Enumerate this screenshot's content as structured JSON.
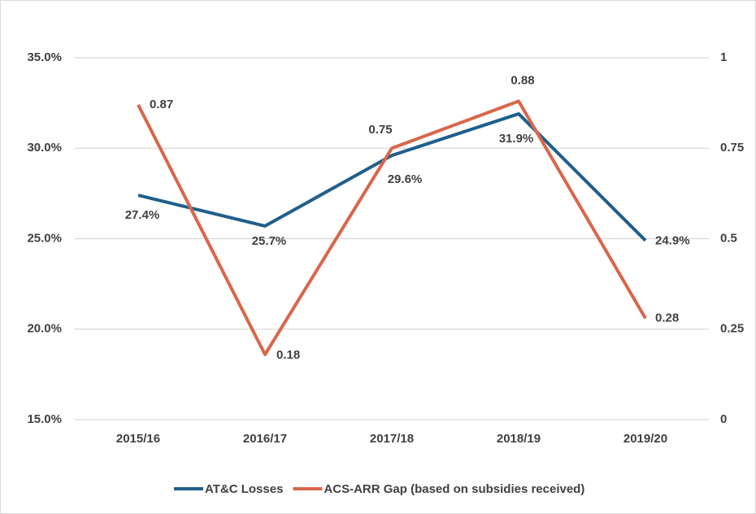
{
  "chart_data": {
    "type": "line",
    "categories": [
      "2015/16",
      "2016/17",
      "2017/18",
      "2018/19",
      "2019/20"
    ],
    "series": [
      {
        "name": "AT&C Losses",
        "color": "#1f5f8b",
        "values": [
          27.4,
          25.7,
          29.6,
          31.9,
          24.9
        ],
        "value_labels": [
          "27.4%",
          "25.7%",
          "29.6%",
          "31.9%",
          "24.9%"
        ]
      },
      {
        "name": "ACS-ARR Gap (based on subsidies received)",
        "color": "#d9664b",
        "axis": "y2",
        "values": [
          0.87,
          0.18,
          0.75,
          0.88,
          0.28
        ]
      }
    ],
    "ylim": [
      15,
      35
    ],
    "yticks": [
      {
        "value": 15,
        "label": "15.0%"
      },
      {
        "value": 20,
        "label": "20.0%"
      },
      {
        "value": 25,
        "label": "25.0%"
      },
      {
        "value": 30,
        "label": "30.0%"
      },
      {
        "value": 35,
        "label": "35.0%"
      }
    ],
    "y2lim": [
      0,
      1
    ],
    "y2ticks": [
      0,
      0.25,
      0.5,
      0.75,
      1
    ],
    "grid": true,
    "legend": "bottom"
  }
}
